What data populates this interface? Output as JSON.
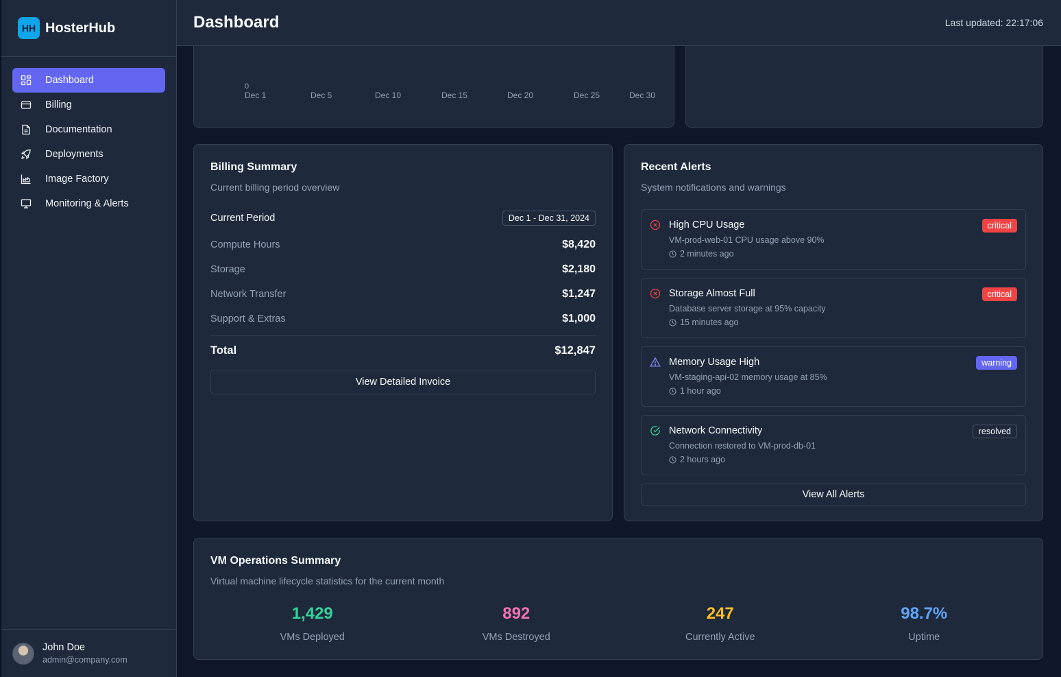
{
  "brand": {
    "logo": "HH",
    "name": "HosterHub"
  },
  "nav": [
    {
      "label": "Dashboard",
      "icon": "grid-icon",
      "active": true
    },
    {
      "label": "Billing",
      "icon": "credit-card-icon"
    },
    {
      "label": "Documentation",
      "icon": "file-text-icon"
    },
    {
      "label": "Deployments",
      "icon": "rocket-icon"
    },
    {
      "label": "Image Factory",
      "icon": "factory-icon"
    },
    {
      "label": "Monitoring & Alerts",
      "icon": "monitor-icon"
    }
  ],
  "user": {
    "name": "John Doe",
    "email": "admin@company.com"
  },
  "header": {
    "title": "Dashboard",
    "last_updated": "Last updated: 22:17:06"
  },
  "chart": {
    "y_zero": "0",
    "x_ticks": [
      "Dec 1",
      "Dec 5",
      "Dec 10",
      "Dec 15",
      "Dec 20",
      "Dec 25",
      "Dec 30"
    ]
  },
  "billing": {
    "title": "Billing Summary",
    "subtitle": "Current billing period overview",
    "period_label": "Current Period",
    "period_value": "Dec 1 - Dec 31, 2024",
    "rows": [
      {
        "label": "Compute Hours",
        "amount": "$8,420"
      },
      {
        "label": "Storage",
        "amount": "$2,180"
      },
      {
        "label": "Network Transfer",
        "amount": "$1,247"
      },
      {
        "label": "Support & Extras",
        "amount": "$1,000"
      }
    ],
    "total_label": "Total",
    "total_amount": "$12,847",
    "button": "View Detailed Invoice"
  },
  "alerts": {
    "title": "Recent Alerts",
    "subtitle": "System notifications and warnings",
    "items": [
      {
        "title": "High CPU Usage",
        "desc": "VM-prod-web-01 CPU usage above 90%",
        "time": "2 minutes ago",
        "badge": "critical",
        "icon": "x-circle-icon"
      },
      {
        "title": "Storage Almost Full",
        "desc": "Database server storage at 95% capacity",
        "time": "15 minutes ago",
        "badge": "critical",
        "icon": "x-circle-icon"
      },
      {
        "title": "Memory Usage High",
        "desc": "VM-staging-api-02 memory usage at 85%",
        "time": "1 hour ago",
        "badge": "warning",
        "icon": "alert-triangle-icon"
      },
      {
        "title": "Network Connectivity",
        "desc": "Connection restored to VM-prod-db-01",
        "time": "2 hours ago",
        "badge": "resolved",
        "icon": "check-circle-icon"
      }
    ],
    "button": "View All Alerts"
  },
  "vmops": {
    "title": "VM Operations Summary",
    "subtitle": "Virtual machine lifecycle statistics for the current month",
    "stats": [
      {
        "value": "1,429",
        "label": "VMs Deployed",
        "color": "#34d399"
      },
      {
        "value": "892",
        "label": "VMs Destroyed",
        "color": "#f472b6"
      },
      {
        "value": "247",
        "label": "Currently Active",
        "color": "#fbbf24"
      },
      {
        "value": "98.7%",
        "label": "Uptime",
        "color": "#60a5fa"
      }
    ]
  }
}
